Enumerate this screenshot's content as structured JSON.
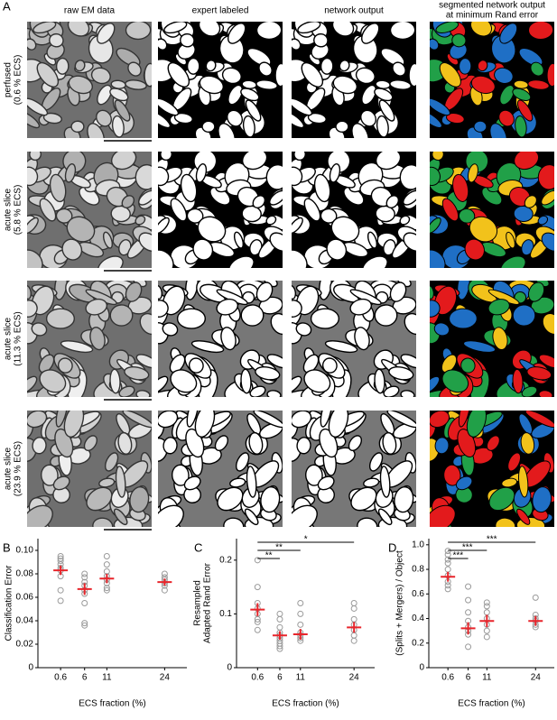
{
  "panel_a": {
    "label": "A",
    "columns": [
      "raw EM data",
      "expert labeled",
      "network output",
      [
        "segmented network output",
        "at minimum Rand error"
      ]
    ],
    "rows": [
      [
        "perfused",
        "(0.6 % ECS)"
      ],
      [
        "acute slice",
        "(5.8 % ECS)"
      ],
      [
        "acute slice",
        "(11.3 % ECS)"
      ],
      [
        "acute slice",
        "(23.9 % ECS)"
      ]
    ]
  },
  "chart_data": [
    {
      "type": "scatter",
      "panel": "B",
      "ylabel": [
        "Classification Error"
      ],
      "xlabel": "ECS fraction (%)",
      "xlim": [
        -4.5,
        29
      ],
      "xticks": [
        0.6,
        6,
        11,
        24
      ],
      "ylim": [
        0,
        0.11
      ],
      "yticks": [
        0,
        0.02,
        0.04,
        0.06,
        0.08,
        {
          "value": 0.1,
          "label": "0.10"
        }
      ],
      "point_color": "#9a9a9a",
      "mean_color": "#e8252b",
      "groups": [
        {
          "x": 0.6,
          "values": [
            0.095,
            0.093,
            0.091,
            0.088,
            0.085,
            0.083,
            0.078,
            0.066,
            0.057
          ],
          "mean": 0.083,
          "error": 0.004
        },
        {
          "x": 6,
          "values": [
            0.08,
            0.077,
            0.073,
            0.07,
            0.066,
            0.063,
            0.055,
            0.038,
            0.036
          ],
          "mean": 0.067,
          "error": 0.005
        },
        {
          "x": 11,
          "values": [
            0.095,
            0.088,
            0.082,
            0.078,
            0.075,
            0.072,
            0.068,
            0.066
          ],
          "mean": 0.076,
          "error": 0.004
        },
        {
          "x": 24,
          "values": [
            0.08,
            0.077,
            0.075,
            0.072,
            0.07,
            0.066
          ],
          "mean": 0.073,
          "error": 0.003
        }
      ],
      "significance": []
    },
    {
      "type": "scatter",
      "panel": "C",
      "ylabel": [
        "Resampled",
        "Adapted Rand Error"
      ],
      "xlabel": "ECS fraction (%)",
      "xlim": [
        -4.5,
        29
      ],
      "xticks": [
        0.6,
        6,
        11,
        24
      ],
      "ylim": [
        0,
        0.24
      ],
      "yticks": [
        0,
        0.1,
        0.2
      ],
      "point_color": "#9a9a9a",
      "mean_color": "#e8252b",
      "groups": [
        {
          "x": 0.6,
          "values": [
            0.2,
            0.15,
            0.12,
            0.11,
            0.1,
            0.09,
            0.085,
            0.07
          ],
          "mean": 0.108,
          "error": 0.012
        },
        {
          "x": 6,
          "values": [
            0.1,
            0.09,
            0.075,
            0.065,
            0.06,
            0.055,
            0.05,
            0.045,
            0.04,
            0.035
          ],
          "mean": 0.06,
          "error": 0.008
        },
        {
          "x": 11,
          "values": [
            0.12,
            0.1,
            0.08,
            0.065,
            0.06,
            0.055,
            0.05
          ],
          "mean": 0.062,
          "error": 0.01
        },
        {
          "x": 24,
          "values": [
            0.12,
            0.11,
            0.09,
            0.08,
            0.07,
            0.06,
            0.05
          ],
          "mean": 0.075,
          "error": 0.01
        }
      ],
      "significance": [
        {
          "from": 0.6,
          "to": 6,
          "label": "**"
        },
        {
          "from": 0.6,
          "to": 11,
          "label": "**"
        },
        {
          "from": 0.6,
          "to": 24,
          "label": "*"
        }
      ]
    },
    {
      "type": "scatter",
      "panel": "D",
      "ylabel": [
        "(Splits + Mergers) / Object"
      ],
      "xlabel": "ECS fraction (%)",
      "xlim": [
        -4.5,
        29
      ],
      "xticks": [
        0.6,
        6,
        11,
        24
      ],
      "ylim": [
        0,
        1.05
      ],
      "yticks": [
        0,
        0.2,
        0.4,
        0.6,
        0.8,
        {
          "value": 1,
          "label": "1.0"
        }
      ],
      "point_color": "#9a9a9a",
      "mean_color": "#e8252b",
      "groups": [
        {
          "x": 0.6,
          "values": [
            0.95,
            0.92,
            0.88,
            0.85,
            0.8,
            0.75,
            0.7,
            0.67,
            0.64
          ],
          "mean": 0.74,
          "error": 0.04
        },
        {
          "x": 6,
          "values": [
            0.66,
            0.55,
            0.45,
            0.38,
            0.33,
            0.3,
            0.27,
            0.17
          ],
          "mean": 0.32,
          "error": 0.05
        },
        {
          "x": 11,
          "values": [
            0.53,
            0.5,
            0.45,
            0.4,
            0.35,
            0.3,
            0.25
          ],
          "mean": 0.38,
          "error": 0.05
        },
        {
          "x": 24,
          "values": [
            0.57,
            0.43,
            0.4,
            0.38,
            0.35,
            0.33
          ],
          "mean": 0.38,
          "error": 0.04
        }
      ],
      "significance": [
        {
          "from": 0.6,
          "to": 6,
          "label": "***"
        },
        {
          "from": 0.6,
          "to": 11,
          "label": "***"
        },
        {
          "from": 0.6,
          "to": 24,
          "label": "***"
        }
      ]
    }
  ]
}
